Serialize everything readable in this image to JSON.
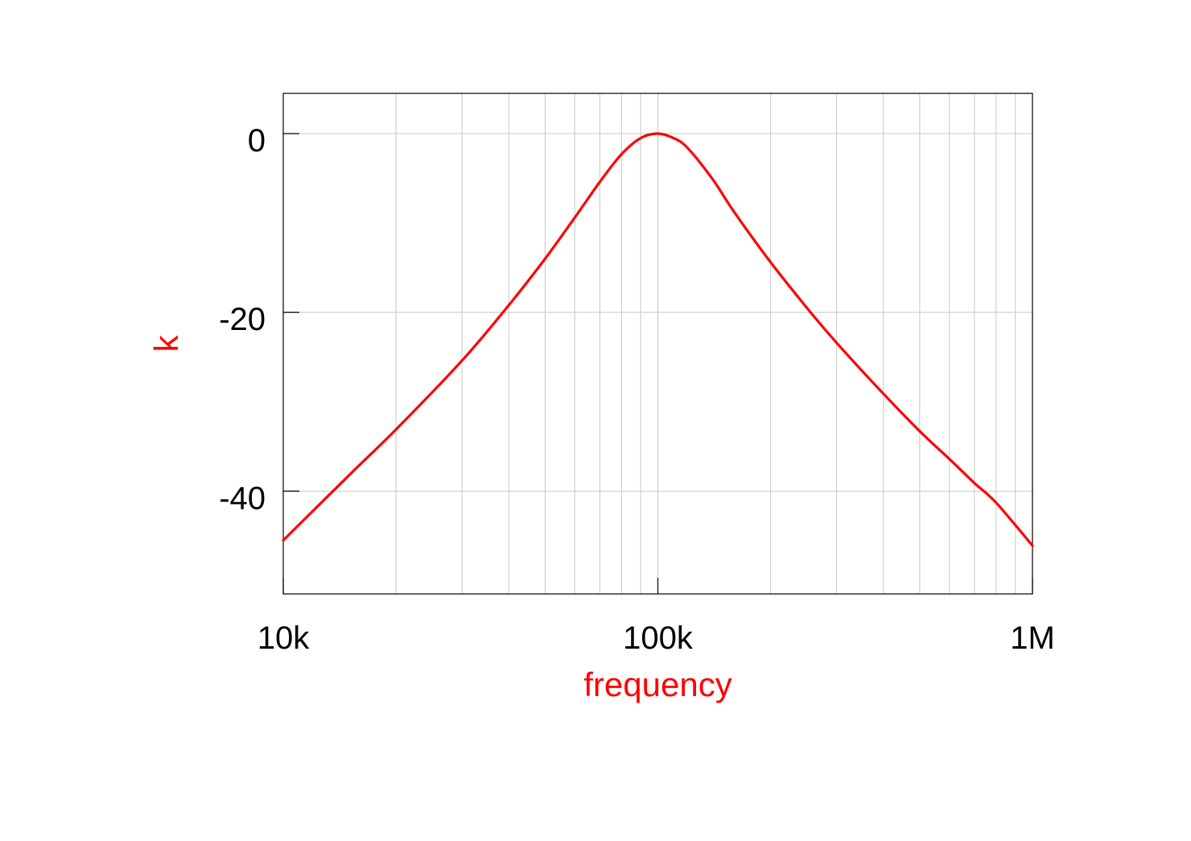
{
  "chart_data": {
    "type": "line",
    "xscale": "log",
    "xlim": [
      10000,
      1000000
    ],
    "ylim": [
      -51.5,
      4.5
    ],
    "xlabel": "frequency",
    "ylabel": "k",
    "xticks": [
      {
        "value": 10000,
        "label": "10k"
      },
      {
        "value": 100000,
        "label": "100k"
      },
      {
        "value": 1000000,
        "label": "1M"
      }
    ],
    "yticks": [
      {
        "value": 0,
        "label": "0"
      },
      {
        "value": -20,
        "label": "-20"
      },
      {
        "value": -40,
        "label": "-40"
      }
    ],
    "grid": true,
    "line_color": "#ff0000",
    "label_color": "#ff0000",
    "series": [
      {
        "x": [
          10000,
          15000,
          20000,
          30000,
          40000,
          50000,
          60000,
          70000,
          80000,
          90000,
          100000,
          110000,
          120000,
          140000,
          160000,
          200000,
          250000,
          300000,
          400000,
          500000,
          600000,
          700000,
          800000,
          1000000
        ],
        "y": [
          -45.5,
          -38.2,
          -33.1,
          -25.4,
          -19.2,
          -14.0,
          -9.4,
          -5.4,
          -2.3,
          -0.5,
          0.0,
          -0.5,
          -1.6,
          -5.1,
          -8.8,
          -14.4,
          -19.5,
          -23.4,
          -29.1,
          -33.3,
          -36.4,
          -39.1,
          -41.3,
          -46.1
        ]
      }
    ]
  }
}
